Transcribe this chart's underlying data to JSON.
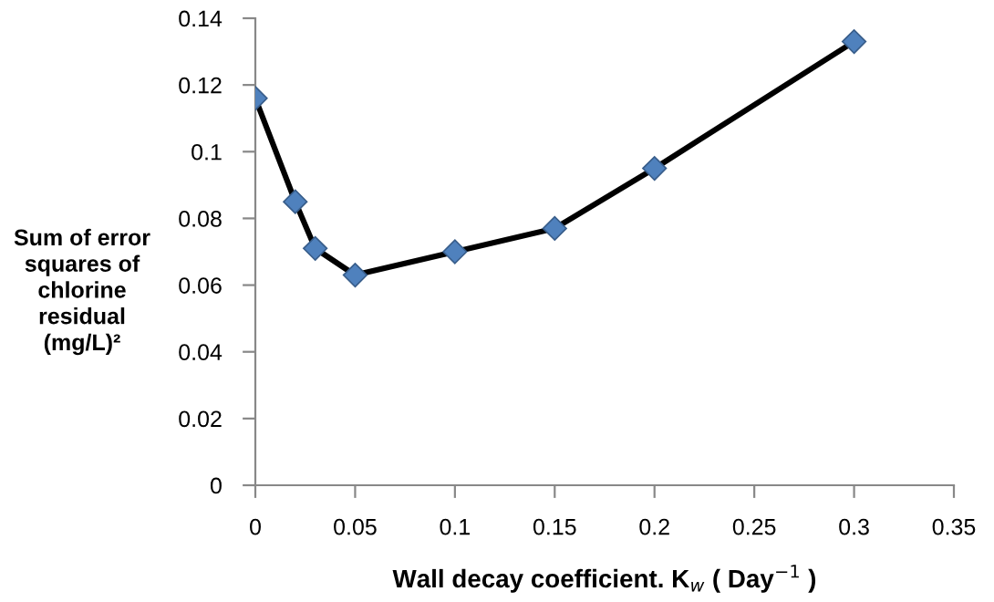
{
  "chart_data": {
    "type": "line",
    "xlabel": "Wall decay coefficient. K$_{w}$ ( Day$^{−1}$ )",
    "ylabel": "Sum of error\nsquares of\nchlorine\nresidual\n(mg/L)²",
    "x": [
      0,
      0.02,
      0.03,
      0.05,
      0.1,
      0.15,
      0.2,
      0.3
    ],
    "series": [
      {
        "values": [
          0.116,
          0.085,
          0.071,
          0.063,
          0.07,
          0.077,
          0.095,
          0.133
        ],
        "color": "#4f81bd"
      }
    ],
    "marker": "diamond",
    "line_style": "solid",
    "grid": false,
    "legend": false,
    "xlim": [
      0,
      0.35
    ],
    "xticks": [
      0,
      0.05,
      0.1,
      0.15,
      0.2,
      0.25,
      0.3,
      0.35
    ],
    "ylim": [
      0,
      0.14
    ],
    "yticks": [
      0,
      0.02,
      0.04,
      0.06,
      0.08,
      0.1,
      0.12,
      0.14
    ]
  }
}
